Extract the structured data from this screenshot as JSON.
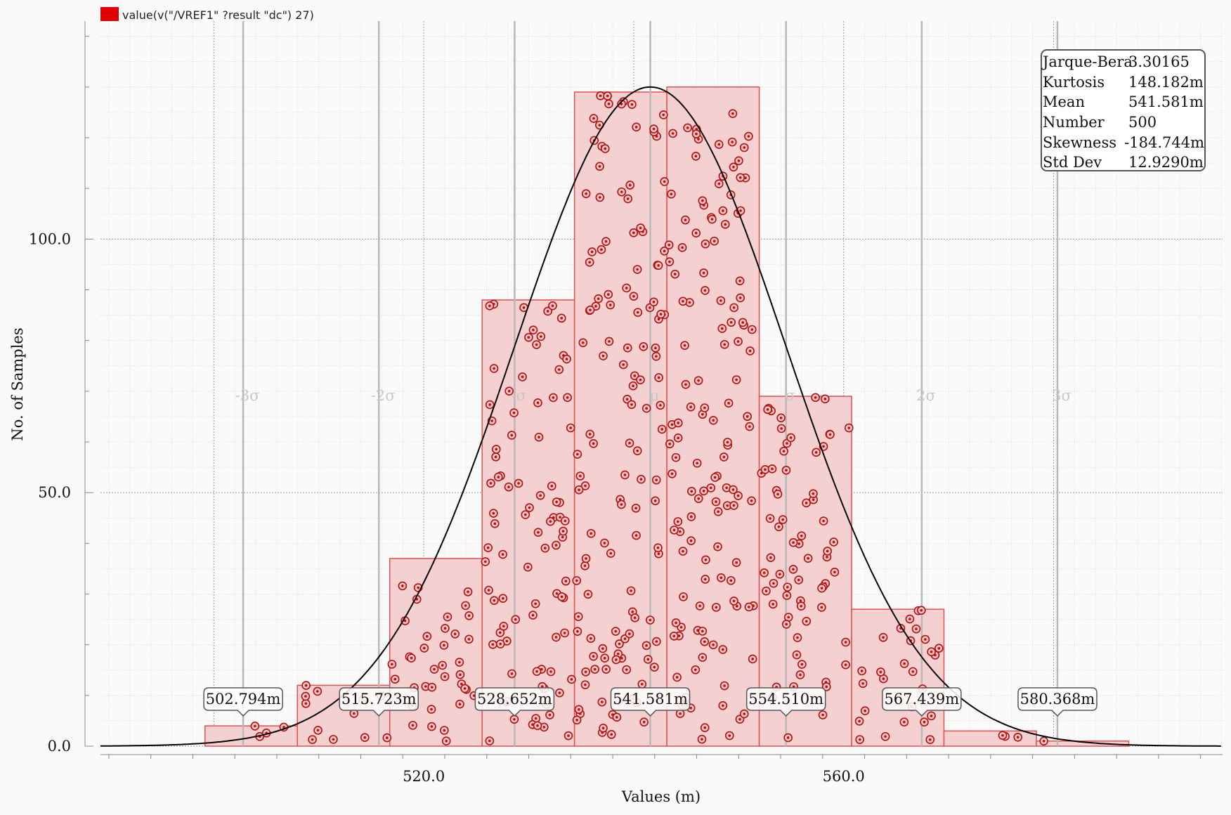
{
  "legend": {
    "label": "value(v(\"/VREF1\" ?result \"dc\") 27)",
    "color": "#e00000"
  },
  "stats": [
    {
      "key": "Jarque-Bera",
      "value": "3.30165"
    },
    {
      "key": "Kurtosis",
      "value": "148.182m"
    },
    {
      "key": "Mean",
      "value": "541.581m"
    },
    {
      "key": "Number",
      "value": "500"
    },
    {
      "key": "Skewness",
      "value": "-184.744m"
    },
    {
      "key": "Std Dev",
      "value": "12.9290m"
    }
  ],
  "chart_data": {
    "type": "bar",
    "xlabel": "Values (m)",
    "ylabel": "No. of Samples",
    "xlim": [
      489.2,
      596.1
    ],
    "ylim": [
      0,
      143
    ],
    "x_ticks": [
      {
        "value": 520.0,
        "label": "520.0"
      },
      {
        "value": 560.0,
        "label": "560.0"
      }
    ],
    "y_ticks": [
      {
        "value": 0,
        "label": "0.0"
      },
      {
        "value": 50,
        "label": "50.0"
      },
      {
        "value": 100,
        "label": "100.0"
      }
    ],
    "bins": [
      {
        "start": 499.16,
        "end": 507.96,
        "count": 4
      },
      {
        "start": 507.96,
        "end": 516.76,
        "count": 12
      },
      {
        "start": 516.76,
        "end": 525.56,
        "count": 37
      },
      {
        "start": 525.56,
        "end": 534.36,
        "count": 88
      },
      {
        "start": 534.36,
        "end": 543.16,
        "count": 129
      },
      {
        "start": 543.16,
        "end": 551.96,
        "count": 130
      },
      {
        "start": 551.96,
        "end": 560.76,
        "count": 69
      },
      {
        "start": 560.76,
        "end": 569.56,
        "count": 27
      },
      {
        "start": 569.56,
        "end": 578.36,
        "count": 3
      },
      {
        "start": 578.36,
        "end": 587.16,
        "count": 1
      }
    ],
    "normal_curve": {
      "mean": 541.581,
      "std": 12.929,
      "peak": 130
    },
    "sigma_lines": [
      {
        "value": 502.794,
        "label": "502.794m",
        "sigma_label": "-3σ"
      },
      {
        "value": 515.723,
        "label": "515.723m",
        "sigma_label": "-2σ"
      },
      {
        "value": 528.652,
        "label": "528.652m",
        "sigma_label": "-σ"
      },
      {
        "value": 541.581,
        "label": "541.581m",
        "sigma_label": "μ"
      },
      {
        "value": 554.51,
        "label": "554.510m",
        "sigma_label": "σ"
      },
      {
        "value": 567.439,
        "label": "567.439m",
        "sigma_label": "2σ"
      },
      {
        "value": 580.368,
        "label": "580.368m",
        "sigma_label": "3σ"
      }
    ],
    "colors": {
      "bar_fill": "#f5d0d0",
      "bar_stroke": "#e05050",
      "point": "#b01010",
      "curve": "#000000"
    },
    "grid": true,
    "legend_position": "top-left"
  }
}
